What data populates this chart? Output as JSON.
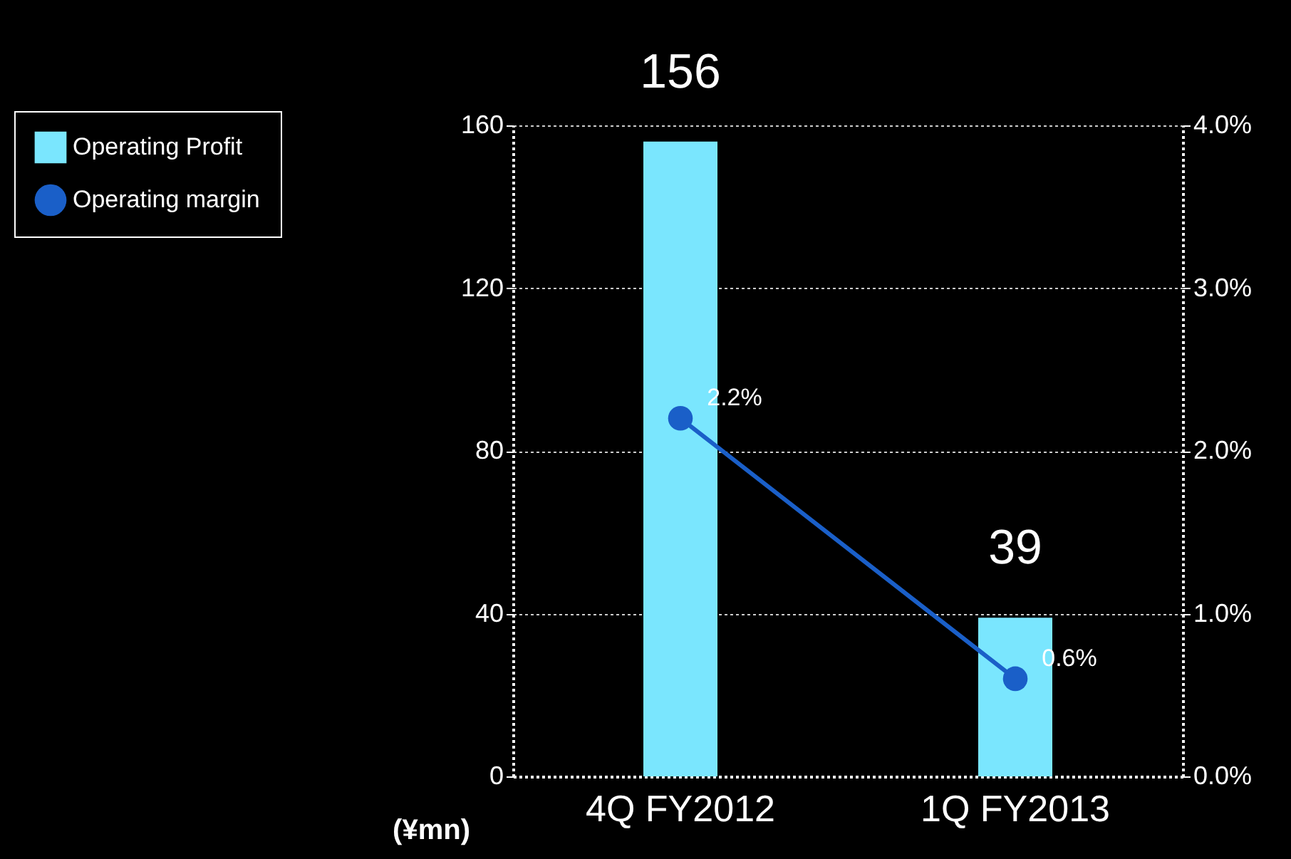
{
  "chart_data": {
    "type": "bar",
    "categories": [
      "4Q FY2012",
      "1Q FY2013"
    ],
    "series": [
      {
        "name": "Operating Profit",
        "color": "#7ae6fe",
        "values": [
          156,
          39
        ],
        "value_labels": [
          "156",
          "39"
        ]
      },
      {
        "name": "Operating margin",
        "type": "line",
        "axis": "y2",
        "color": "#1a5fc8",
        "values": [
          2.2,
          0.6
        ],
        "value_labels": [
          "2.2%",
          "0.6%"
        ]
      }
    ],
    "ylim": [
      0,
      160
    ],
    "yticks": [
      0,
      40,
      80,
      120,
      160
    ],
    "y2lim": [
      0,
      4
    ],
    "y2ticks": [
      {
        "value": 0,
        "label": "0.0%"
      },
      {
        "value": 1,
        "label": "1.0%"
      },
      {
        "value": 2,
        "label": "2.0%"
      },
      {
        "value": 3,
        "label": "3.0%"
      },
      {
        "value": 4,
        "label": "4.0%"
      }
    ],
    "annotations": [
      "(¥mn)"
    ],
    "grid": "y",
    "legend": "left",
    "marker": "circle",
    "line_style": "solid"
  }
}
